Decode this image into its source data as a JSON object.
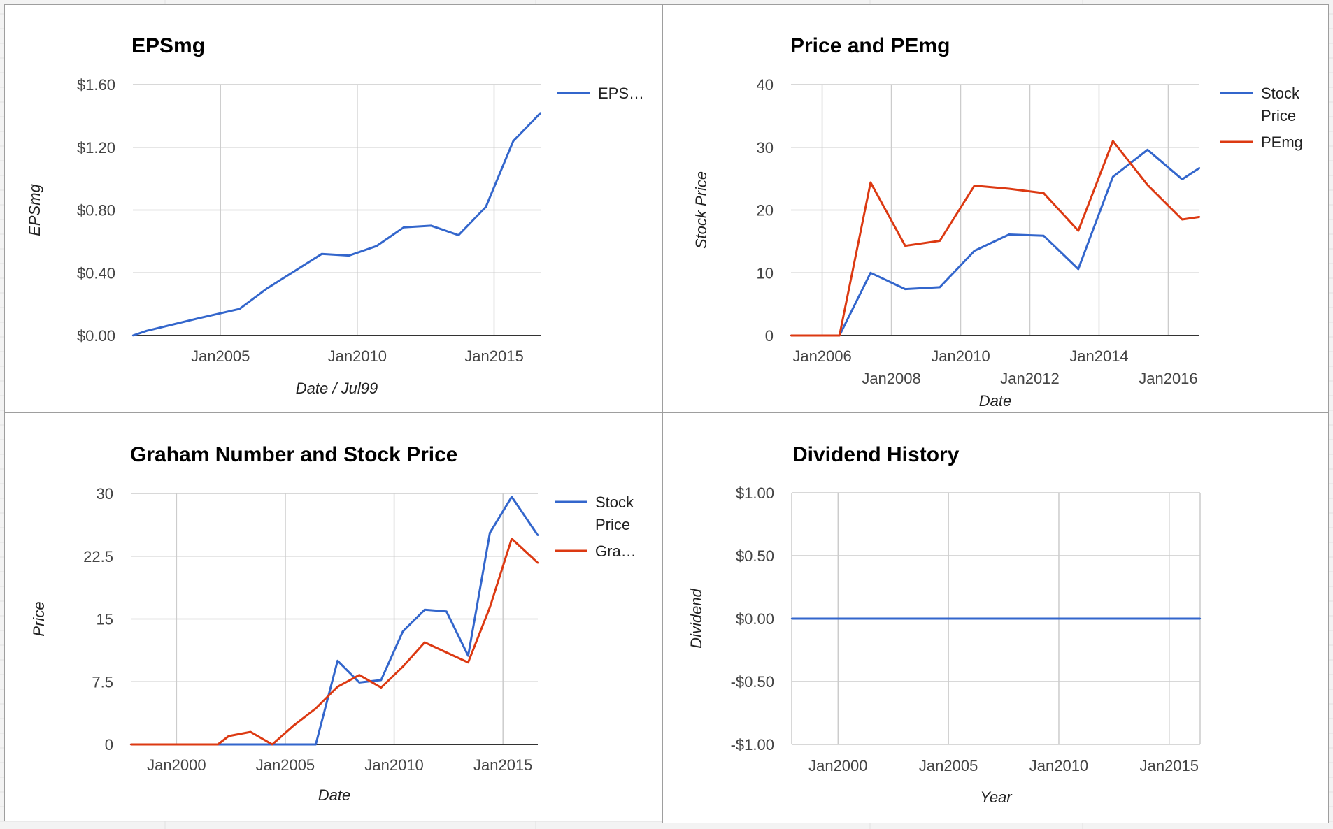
{
  "colors": {
    "blue": "#3366cc",
    "red": "#dc3912"
  },
  "chart_data": [
    {
      "id": "eps",
      "type": "line",
      "title": "EPSmg",
      "xlabel": "Date / Jul99",
      "ylabel": "EPSmg",
      "xlim": [
        2001.8,
        2016.7
      ],
      "ylim": [
        0,
        1.6
      ],
      "yticks": [
        {
          "v": 0,
          "label": "$0.00"
        },
        {
          "v": 0.4,
          "label": "$0.40"
        },
        {
          "v": 0.8,
          "label": "$0.80"
        },
        {
          "v": 1.2,
          "label": "$1.20"
        },
        {
          "v": 1.6,
          "label": "$1.60"
        }
      ],
      "xticks": [
        {
          "v": 2005,
          "label": "Jan2005",
          "row": 0
        },
        {
          "v": 2010,
          "label": "Jan2010",
          "row": 0
        },
        {
          "v": 2015,
          "label": "Jan2015",
          "row": 0
        }
      ],
      "legend": "right",
      "series": [
        {
          "name": "EPS…",
          "color": "#3366cc",
          "x": [
            2001.8,
            2002.3,
            2004.2,
            2005.7,
            2006.7,
            2007.7,
            2008.7,
            2009.7,
            2010.7,
            2011.7,
            2012.7,
            2013.7,
            2014.7,
            2015.7,
            2016.7
          ],
          "y": [
            0,
            0.03,
            0.11,
            0.17,
            0.3,
            0.41,
            0.52,
            0.51,
            0.57,
            0.69,
            0.7,
            0.64,
            0.82,
            1.24,
            1.42
          ]
        }
      ]
    },
    {
      "id": "price-pe",
      "type": "line",
      "title": "Price and PEmg",
      "xlabel": "Date",
      "ylabel": "Stock Price",
      "xlim": [
        2005.1,
        2016.9
      ],
      "ylim": [
        0,
        40
      ],
      "yticks": [
        {
          "v": 0,
          "label": "0"
        },
        {
          "v": 10,
          "label": "10"
        },
        {
          "v": 20,
          "label": "20"
        },
        {
          "v": 30,
          "label": "30"
        },
        {
          "v": 40,
          "label": "40"
        }
      ],
      "xticks": [
        {
          "v": 2006,
          "label": "Jan2006",
          "row": 0
        },
        {
          "v": 2008,
          "label": "Jan2008",
          "row": 1
        },
        {
          "v": 2010,
          "label": "Jan2010",
          "row": 0
        },
        {
          "v": 2012,
          "label": "Jan2012",
          "row": 1
        },
        {
          "v": 2014,
          "label": "Jan2014",
          "row": 0
        },
        {
          "v": 2016,
          "label": "Jan2016",
          "row": 1
        }
      ],
      "legend": "right",
      "series": [
        {
          "name": [
            "Stock",
            "Price"
          ],
          "color": "#3366cc",
          "x": [
            2005.1,
            2006.0,
            2006.5,
            2007.4,
            2008.4,
            2009.4,
            2010.4,
            2011.4,
            2012.4,
            2013.4,
            2014.4,
            2015.4,
            2016.4,
            2016.9
          ],
          "y": [
            0,
            0,
            0,
            10,
            7.4,
            7.7,
            13.5,
            16.1,
            15.9,
            10.6,
            25.3,
            29.6,
            24.9,
            26.7
          ]
        },
        {
          "name": "PEmg",
          "color": "#dc3912",
          "x": [
            2005.1,
            2006.0,
            2006.5,
            2007.4,
            2008.4,
            2009.4,
            2010.4,
            2011.4,
            2012.4,
            2013.4,
            2014.4,
            2015.4,
            2016.4,
            2016.9
          ],
          "y": [
            0,
            0,
            0,
            24.4,
            14.3,
            15.1,
            23.9,
            23.4,
            22.7,
            16.7,
            31.0,
            24.0,
            18.5,
            18.9
          ]
        }
      ]
    },
    {
      "id": "graham",
      "type": "line",
      "title": "Graham Number and Stock Price",
      "xlabel": "Date",
      "ylabel": "Price",
      "xlim": [
        1997.9,
        2016.6
      ],
      "ylim": [
        0,
        30
      ],
      "yticks": [
        {
          "v": 0,
          "label": "0"
        },
        {
          "v": 7.5,
          "label": "7.5"
        },
        {
          "v": 15,
          "label": "15"
        },
        {
          "v": 22.5,
          "label": "22.5"
        },
        {
          "v": 30,
          "label": "30"
        }
      ],
      "xticks": [
        {
          "v": 2000,
          "label": "Jan2000",
          "row": 0
        },
        {
          "v": 2005,
          "label": "Jan2005",
          "row": 0
        },
        {
          "v": 2010,
          "label": "Jan2010",
          "row": 0
        },
        {
          "v": 2015,
          "label": "Jan2015",
          "row": 0
        }
      ],
      "legend": "right",
      "series": [
        {
          "name": [
            "Stock",
            "Price"
          ],
          "color": "#3366cc",
          "x": [
            1997.9,
            2006.4,
            2007.4,
            2008.4,
            2009.4,
            2010.4,
            2011.4,
            2012.4,
            2013.4,
            2014.4,
            2015.4,
            2016.6
          ],
          "y": [
            0,
            0,
            10,
            7.4,
            7.7,
            13.5,
            16.1,
            15.9,
            10.6,
            25.3,
            29.6,
            25.0
          ]
        },
        {
          "name": "Gra…",
          "color": "#dc3912",
          "x": [
            1997.9,
            2001.9,
            2002.4,
            2003.4,
            2004.4,
            2005.4,
            2006.4,
            2007.4,
            2008.4,
            2009.4,
            2010.4,
            2011.4,
            2012.4,
            2013.4,
            2014.4,
            2015.4,
            2016.6
          ],
          "y": [
            0,
            0,
            1.0,
            1.5,
            0,
            2.3,
            4.3,
            6.9,
            8.3,
            6.8,
            9.3,
            12.2,
            11.0,
            9.8,
            16.4,
            24.6,
            21.7
          ]
        }
      ]
    },
    {
      "id": "dividend",
      "type": "line",
      "title": "Dividend History",
      "xlabel": "Year",
      "ylabel": "Dividend",
      "xlim": [
        1997.9,
        2016.4
      ],
      "ylim": [
        -1,
        1
      ],
      "yticks": [
        {
          "v": -1,
          "label": "-$1.00"
        },
        {
          "v": -0.5,
          "label": "-$0.50"
        },
        {
          "v": 0,
          "label": "$0.00"
        },
        {
          "v": 0.5,
          "label": "$0.50"
        },
        {
          "v": 1,
          "label": "$1.00"
        }
      ],
      "xticks": [
        {
          "v": 2000,
          "label": "Jan2000",
          "row": 0
        },
        {
          "v": 2005,
          "label": "Jan2005",
          "row": 0
        },
        {
          "v": 2010,
          "label": "Jan2010",
          "row": 0
        },
        {
          "v": 2015,
          "label": "Jan2015",
          "row": 0
        }
      ],
      "legend": "none",
      "series": [
        {
          "color": "#3366cc",
          "x": [
            1997.9,
            2016.4
          ],
          "y": [
            0,
            0
          ]
        }
      ]
    }
  ]
}
